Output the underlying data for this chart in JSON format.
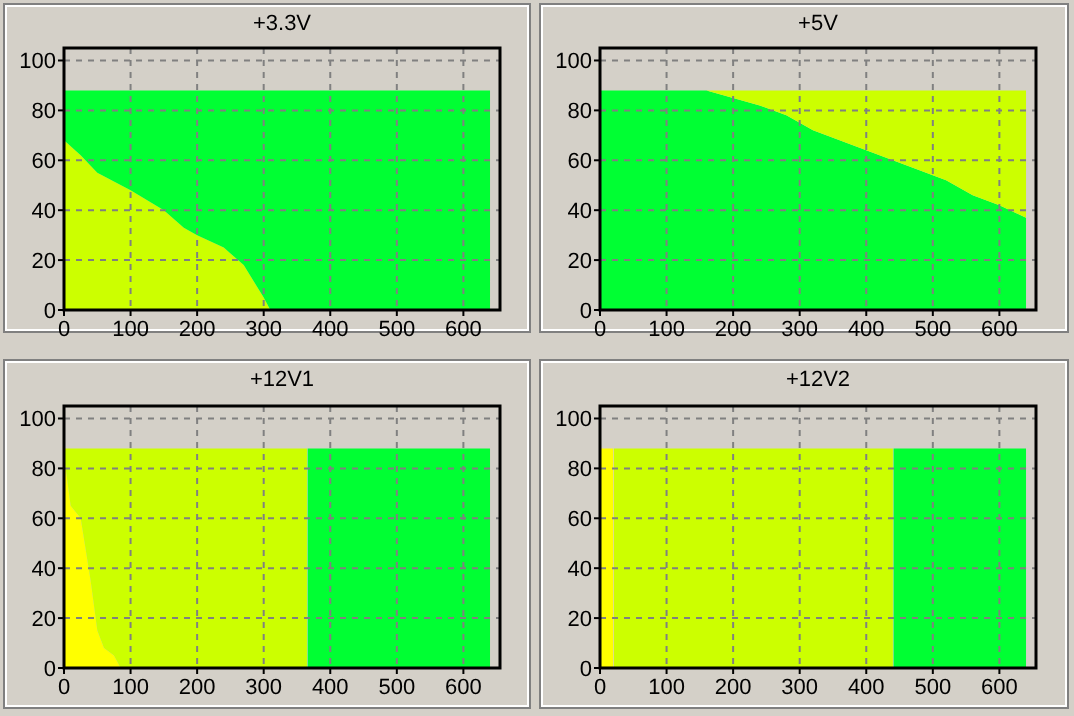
{
  "chart_data": [
    {
      "type": "area",
      "title": "+3.3V",
      "stacked": true,
      "x": [
        0,
        25,
        50,
        100,
        150,
        180,
        200,
        240,
        270,
        300,
        310,
        640
      ],
      "series": [
        {
          "color": "#ccff00",
          "values": [
            68,
            62,
            55,
            48,
            40,
            33,
            30,
            25,
            18,
            5,
            0,
            0
          ]
        },
        {
          "color": "#00ff33",
          "values": [
            20,
            26,
            33,
            40,
            48,
            55,
            58,
            63,
            70,
            83,
            88,
            88
          ]
        }
      ],
      "xlim": [
        0,
        655
      ],
      "ylim": [
        0,
        105
      ],
      "xticks": [
        0,
        100,
        200,
        300,
        400,
        500,
        600
      ],
      "yticks": [
        0,
        20,
        40,
        60,
        80,
        100
      ],
      "grid": true
    },
    {
      "type": "area",
      "title": "+5V",
      "stacked": true,
      "x": [
        0,
        160,
        200,
        240,
        280,
        320,
        360,
        400,
        440,
        480,
        520,
        560,
        600,
        640
      ],
      "series": [
        {
          "color": "#00ff33",
          "values": [
            88,
            88,
            85,
            82,
            78,
            72,
            68,
            64,
            60,
            56,
            52,
            46,
            42,
            37
          ]
        },
        {
          "color": "#ccff00",
          "values": [
            0,
            0,
            3,
            6,
            10,
            16,
            20,
            24,
            28,
            32,
            36,
            42,
            46,
            51
          ]
        }
      ],
      "xlim": [
        0,
        655
      ],
      "ylim": [
        0,
        105
      ],
      "xticks": [
        0,
        100,
        200,
        300,
        400,
        500,
        600
      ],
      "yticks": [
        0,
        20,
        40,
        60,
        80,
        100
      ],
      "grid": true
    },
    {
      "type": "area",
      "title": "+12V1",
      "stacked": true,
      "x": [
        0,
        10,
        25,
        40,
        50,
        60,
        75,
        85,
        365,
        366,
        640
      ],
      "series": [
        {
          "color": "#ffff00",
          "values": [
            85,
            65,
            60,
            35,
            15,
            8,
            5,
            0,
            null,
            null,
            null
          ]
        },
        {
          "color": "#ccff00",
          "values": [
            3,
            23,
            28,
            53,
            73,
            80,
            83,
            88,
            88,
            null,
            null
          ]
        },
        {
          "color": "#00ff33",
          "values": [
            null,
            null,
            null,
            null,
            null,
            null,
            null,
            null,
            null,
            88,
            88
          ]
        }
      ],
      "xlim": [
        0,
        655
      ],
      "ylim": [
        0,
        105
      ],
      "xticks": [
        0,
        100,
        200,
        300,
        400,
        500,
        600
      ],
      "yticks": [
        0,
        20,
        40,
        60,
        80,
        100
      ],
      "grid": true
    },
    {
      "type": "area",
      "title": "+12V2",
      "stacked": true,
      "x": [
        0,
        20,
        21,
        440,
        441,
        640
      ],
      "series": [
        {
          "color": "#ffff00",
          "values": [
            88,
            88,
            null,
            null,
            null,
            null
          ]
        },
        {
          "color": "#ccff00",
          "values": [
            null,
            null,
            88,
            88,
            null,
            null
          ]
        },
        {
          "color": "#00ff33",
          "values": [
            null,
            null,
            null,
            null,
            88,
            88
          ]
        }
      ],
      "xlim": [
        0,
        655
      ],
      "ylim": [
        0,
        105
      ],
      "xticks": [
        0,
        100,
        200,
        300,
        400,
        500,
        600
      ],
      "yticks": [
        0,
        20,
        40,
        60,
        80,
        100
      ],
      "grid": true
    }
  ]
}
